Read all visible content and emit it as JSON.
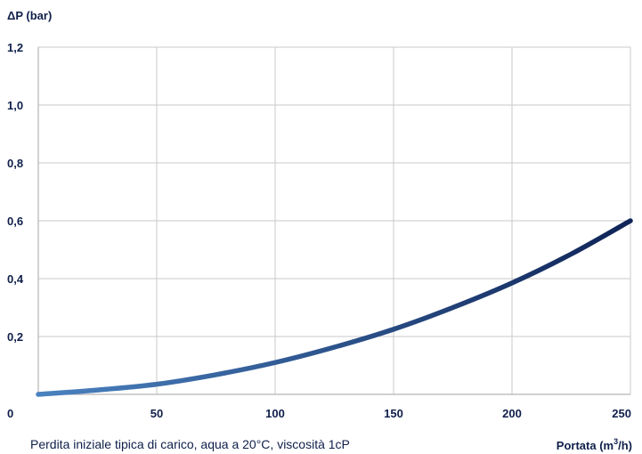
{
  "colors": {
    "text": "#0f1f4a",
    "grid": "#c8c8c8",
    "axis": "#b5b5b5",
    "curve_start": "#4a82c0",
    "curve_end": "#0f2457"
  },
  "chart_data": {
    "type": "line",
    "ylabel": "ΔP (bar)",
    "xlabel_prefix": "Portata (m",
    "xlabel_sup": "3",
    "xlabel_suffix": "/h)",
    "note": "Perdita iniziale tipica di carico, aqua a 20°C, viscosità 1cP",
    "xlim": [
      0,
      250
    ],
    "ylim": [
      0,
      1.2
    ],
    "x_ticks": [
      0,
      50,
      100,
      150,
      200,
      250
    ],
    "x_tick_labels": [
      "0",
      "50",
      "100",
      "150",
      "200",
      "250"
    ],
    "y_ticks": [
      0.2,
      0.4,
      0.6,
      0.8,
      1.0,
      1.2
    ],
    "y_tick_labels": [
      "0,2",
      "0,4",
      "0,6",
      "0,8",
      "1,0",
      "1,2"
    ],
    "grid": true,
    "series": [
      {
        "x": [
          0,
          25,
          50,
          75,
          100,
          125,
          150,
          175,
          200,
          225,
          250
        ],
        "y": [
          0.0,
          0.015,
          0.035,
          0.068,
          0.11,
          0.163,
          0.225,
          0.3,
          0.385,
          0.485,
          0.6
        ]
      }
    ]
  }
}
